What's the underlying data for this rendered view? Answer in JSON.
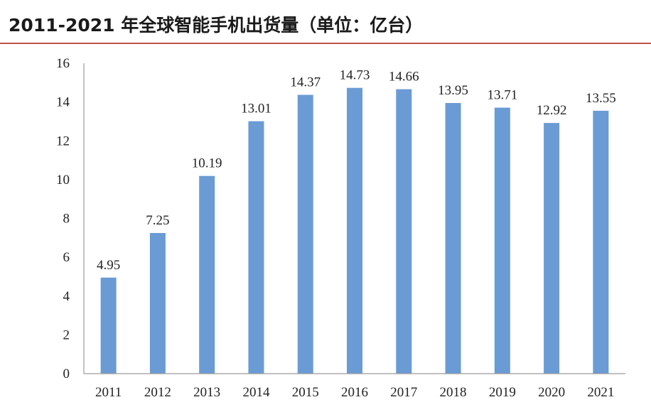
{
  "title": "2011-2021 年全球智能手机出货量（单位：亿台）",
  "chart_data": {
    "type": "bar",
    "categories": [
      "2011",
      "2012",
      "2013",
      "2014",
      "2015",
      "2016",
      "2017",
      "2018",
      "2019",
      "2020",
      "2021"
    ],
    "values": [
      4.95,
      7.25,
      10.19,
      13.01,
      14.37,
      14.73,
      14.66,
      13.95,
      13.71,
      12.92,
      13.55
    ],
    "data_labels": [
      "4.95",
      "7.25",
      "10.19",
      "13.01",
      "14.37",
      "14.73",
      "14.66",
      "13.95",
      "13.71",
      "12.92",
      "13.55"
    ],
    "yticks": [
      "0",
      "2",
      "4",
      "6",
      "8",
      "10",
      "12",
      "14",
      "16"
    ],
    "ylim": [
      0,
      16
    ],
    "bar_color": "#6a9bd4",
    "grid": false,
    "legend": "none"
  }
}
